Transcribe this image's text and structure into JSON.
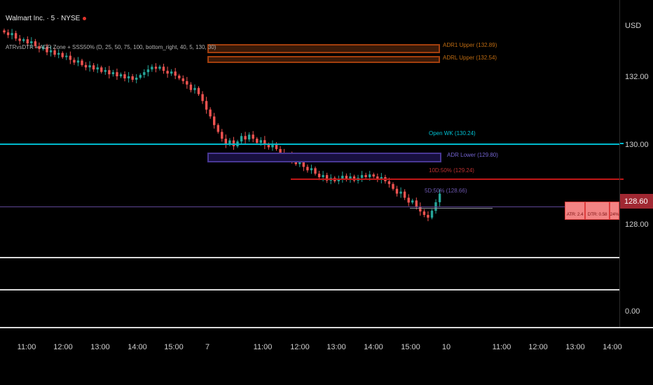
{
  "legend": {
    "symbol_title": "Walmart Inc. · 5 · NYSE",
    "indicator_title": "ATRvsDTR + ADR Zone + SSS50% (D, 25, 50, 75, 100, bottom_right, 40, 5, 130, 30)"
  },
  "overlays": {
    "adr1_upper_label": "ADR1 Upper (132.89)",
    "adrl_upper_label": "ADRL Upper (132.54)",
    "open_wk_label": "Open WK (130.24)",
    "adr_lower_label": "ADR Lower (129.80)",
    "d10_50_label": "10D:50% (129.24)",
    "d5_50_label": "5D:50% (128.66)"
  },
  "stats": {
    "atr": "ATR: 2.4",
    "dtr": "DTR: 0.58",
    "pct": "24%"
  },
  "price_axis": {
    "currency": "USD",
    "tick_132": "132.00",
    "tick_130": "130.00",
    "tick_128": "128.00",
    "tick_zero": "0.00",
    "last_price": "128.60"
  },
  "time_axis": {
    "labels": [
      "11:00",
      "12:00",
      "13:00",
      "14:00",
      "15:00",
      "7",
      "11:00",
      "12:00",
      "13:00",
      "14:00",
      "15:00",
      "10",
      "11:00",
      "12:00",
      "13:00",
      "14:00"
    ]
  },
  "chart_data": {
    "type": "candlestick",
    "title": "Walmart Inc. · 5 · NYSE",
    "symbol": "Walmart Inc.",
    "exchange": "NYSE",
    "interval": "5",
    "currency": "USD",
    "up_color": "#26a69a",
    "down_color": "#ef5350",
    "y_ticks": [
      132.0,
      130.0,
      128.0
    ],
    "sub_pane_tick": 0.0,
    "visible_price_range": [
      127.6,
      133.6
    ],
    "last_price": 128.6,
    "x_labels": [
      "11:00",
      "12:00",
      "13:00",
      "14:00",
      "15:00",
      "7",
      "11:00",
      "12:00",
      "13:00",
      "14:00",
      "15:00",
      "10",
      "11:00",
      "12:00",
      "13:00",
      "14:00"
    ],
    "closes": [
      133.3,
      133.22,
      133.28,
      133.12,
      133.05,
      133.1,
      132.98,
      133.04,
      132.9,
      132.82,
      132.88,
      132.72,
      132.78,
      132.65,
      132.7,
      132.58,
      132.62,
      132.5,
      132.42,
      132.48,
      132.35,
      132.28,
      132.34,
      132.22,
      132.28,
      132.15,
      132.2,
      132.08,
      132.14,
      132.02,
      132.08,
      131.96,
      132.02,
      131.92,
      131.98,
      132.06,
      132.14,
      132.22,
      132.3,
      132.24,
      132.3,
      132.18,
      132.1,
      132.16,
      132.04,
      131.96,
      131.88,
      131.78,
      131.62,
      131.68,
      131.5,
      131.3,
      131.05,
      130.85,
      130.6,
      130.4,
      130.2,
      130.05,
      130.15,
      129.98,
      130.12,
      130.28,
      130.18,
      130.32,
      130.2,
      130.08,
      130.16,
      130.02,
      129.95,
      130.05,
      129.9,
      129.78,
      129.66,
      129.72,
      129.58,
      129.46,
      129.52,
      129.38,
      129.28,
      129.34,
      129.18,
      129.08,
      129.14,
      128.98,
      129.06,
      128.96,
      129.04,
      129.12,
      129.02,
      129.1,
      128.98,
      129.06,
      129.14,
      129.08,
      129.16,
      129.1,
      129.02,
      129.08,
      128.96,
      128.88,
      128.74,
      128.6,
      128.66,
      128.48,
      128.34,
      128.4,
      128.22,
      128.08,
      127.98,
      127.9,
      128.1,
      128.35,
      128.6
    ],
    "levels": [
      {
        "name": "ADR1 Upper",
        "value": 132.89,
        "style": "zone",
        "color": "#a23e0d"
      },
      {
        "name": "ADRL Upper",
        "value": 132.54,
        "style": "zone",
        "color": "#a23e0d"
      },
      {
        "name": "Open WK",
        "value": 130.24,
        "style": "line",
        "color": "#00b9cc"
      },
      {
        "name": "ADR Lower",
        "value": 129.8,
        "style": "zone",
        "color": "#483795"
      },
      {
        "name": "10D:50%",
        "value": 129.24,
        "style": "line",
        "color": "#c01616"
      },
      {
        "name": "5D:50%",
        "value": 128.66,
        "style": "line",
        "color": "#5e4795"
      }
    ],
    "stats": {
      "atr": 2.4,
      "dtr": 0.58,
      "dtr_of_atr_pct": 24
    }
  }
}
